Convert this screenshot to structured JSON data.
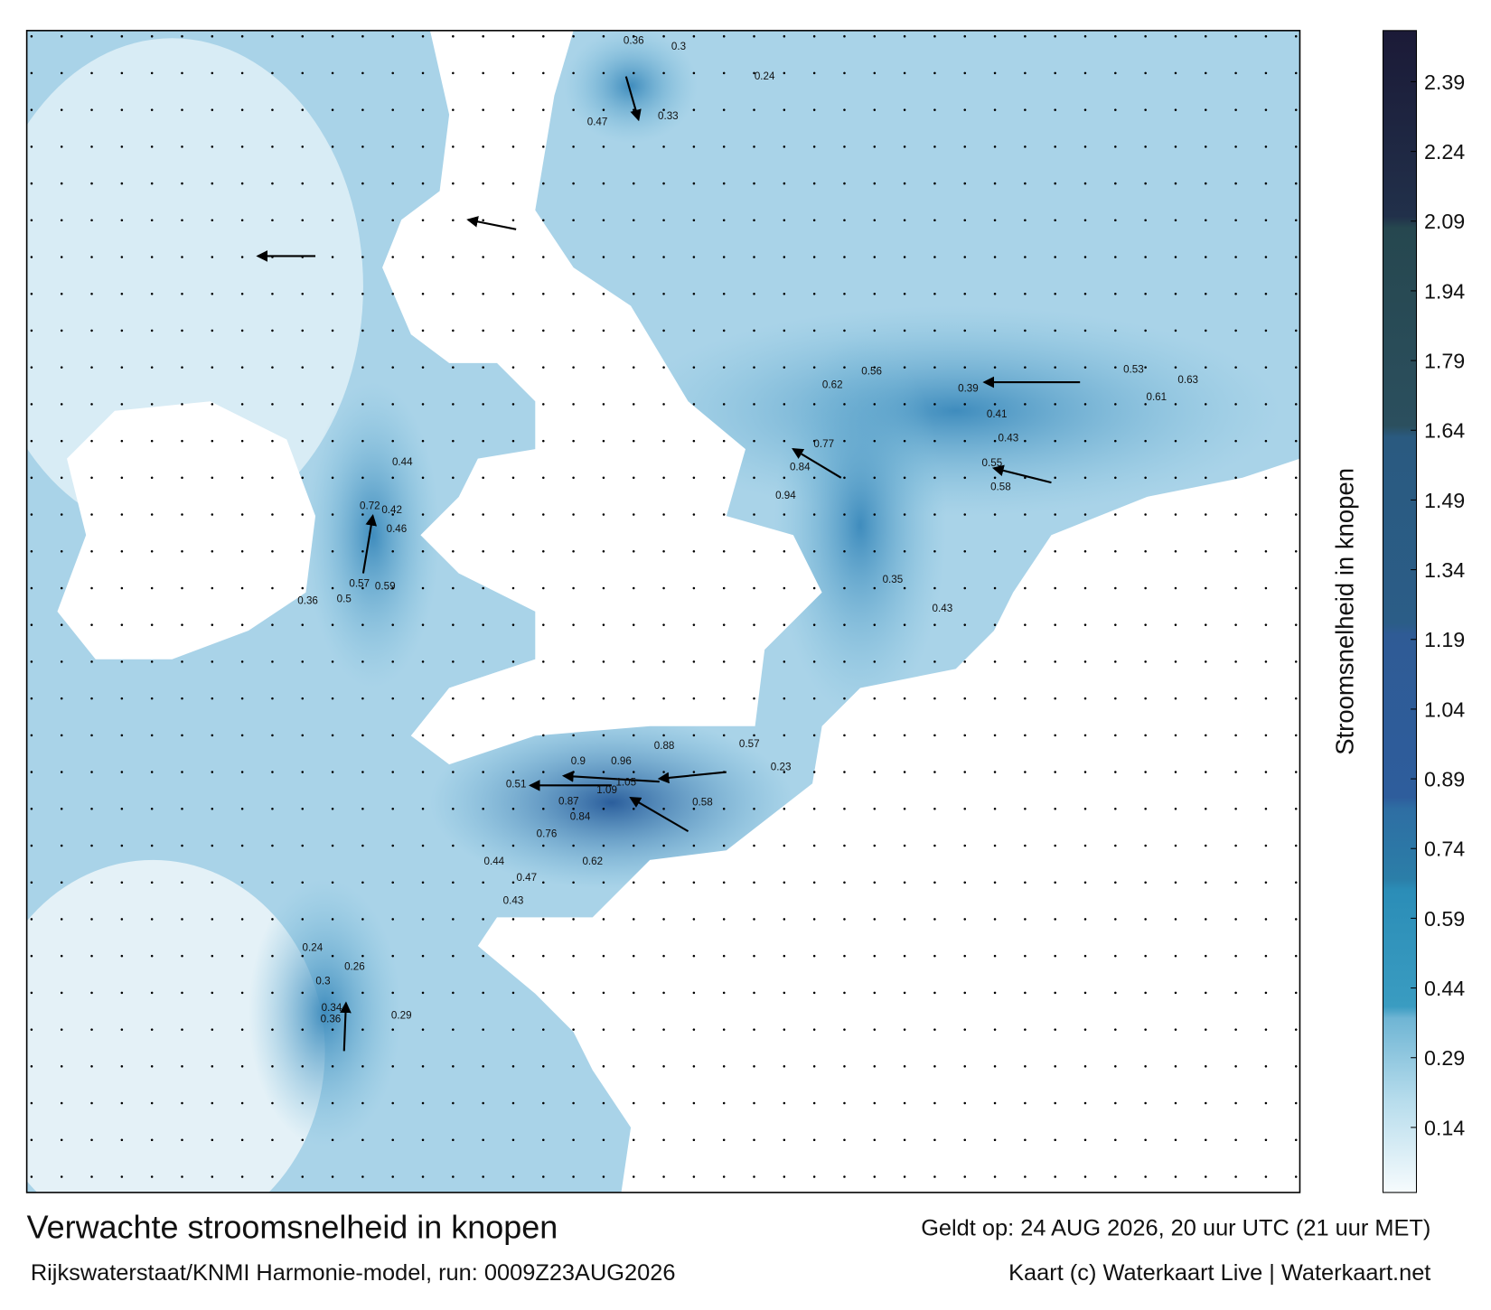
{
  "header": {
    "title": "Verwachte stroomsnelheid in knopen",
    "subtitle": "Rijkswaterstaat/KNMI Harmonie-model, run: 0009Z23AUG2026",
    "valid": "Geldt op: 24 AUG 2026, 20 uur UTC (21 uur MET)",
    "credit": "Kaart (c) Waterkaart Live | Waterkaart.net"
  },
  "colorbar": {
    "title": "Stroomsnelheid in knopen",
    "lim": [
      0,
      2.5
    ],
    "ticks": [
      0.14,
      0.29,
      0.44,
      0.59,
      0.74,
      0.89,
      1.04,
      1.19,
      1.34,
      1.49,
      1.64,
      1.79,
      1.94,
      2.09,
      2.24,
      2.39
    ]
  },
  "map_labels": [
    1.05,
    0.96,
    1.09,
    0.58,
    0.88,
    0.9,
    0.87,
    0.51,
    0.84,
    0.76,
    0.62,
    0.44,
    0.47,
    0.43,
    0.57,
    0.23,
    0.84,
    0.77,
    0.94,
    0.62,
    0.56,
    0.53,
    0.63,
    0.61,
    0.43,
    0.41,
    0.39,
    0.72,
    0.57,
    0.5,
    0.59,
    0.46,
    0.42,
    0.44,
    0.36,
    0.34,
    0.36,
    0.3,
    0.24,
    0.26,
    0.29,
    0.3,
    0.36,
    0.24,
    0.47,
    0.33,
    0.55,
    0.58,
    0.35,
    0.43
  ]
}
